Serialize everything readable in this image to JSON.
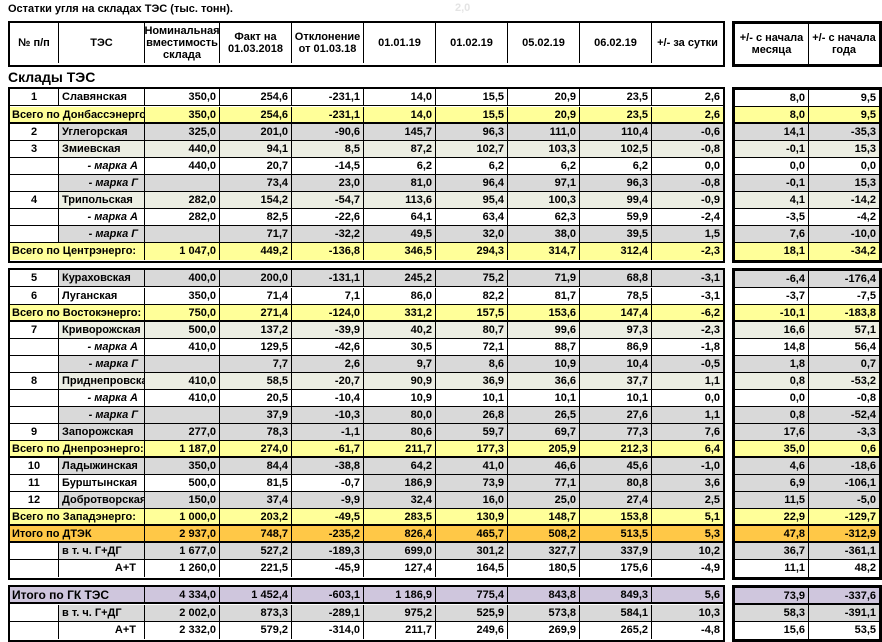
{
  "title": "Остатки угля на складах ТЭС (тыс. тонн).",
  "stray_note": "2,0",
  "section_title": "Склады ТЭС",
  "colors": {
    "yellow_total": "#ffff99",
    "gold_dtek": "#ffc847",
    "lavender_gk": "#cfc6dd",
    "gray_row": "#d9d9d9",
    "tan_row": "#eceee3",
    "border": "#000000"
  },
  "table": {
    "columns": [
      "№ п/п",
      "ТЭС",
      "Номинальная вместимость склада",
      "Факт на 01.03.2018",
      "Отклонение от 01.03.18",
      "01.01.19",
      "01.02.19",
      "05.02.19",
      "06.02.19",
      "+/- за сутки",
      "+/- с начала месяца",
      "+/- с начала года"
    ],
    "sections": [
      {
        "rows": [
          {
            "num": "1",
            "name": "Славянская",
            "style": "white",
            "values": [
              "350,0",
              "254,6",
              "-231,1",
              "14,0",
              "15,5",
              "20,9",
              "23,5",
              "2,6",
              "8,0",
              "9,5"
            ]
          },
          {
            "num": "",
            "name": "Всего по Донбассэнерго:",
            "style": "total",
            "values": [
              "350,0",
              "254,6",
              "-231,1",
              "14,0",
              "15,5",
              "20,9",
              "23,5",
              "2,6",
              "8,0",
              "9,5"
            ]
          },
          {
            "num": "2",
            "name": "Углегорская",
            "style": "gray",
            "values": [
              "325,0",
              "201,0",
              "-90,6",
              "145,7",
              "96,3",
              "111,0",
              "110,4",
              "-0,6",
              "14,1",
              "-35,3"
            ]
          },
          {
            "num": "3",
            "name": "Змиевская",
            "style": "tan",
            "values": [
              "440,0",
              "94,1",
              "8,5",
              "87,2",
              "102,7",
              "103,3",
              "102,5",
              "-0,8",
              "-0,1",
              "15,3"
            ]
          },
          {
            "num": "",
            "name": "- марка А",
            "style": "markaA",
            "values": [
              "440,0",
              "20,7",
              "-14,5",
              "6,2",
              "6,2",
              "6,2",
              "6,2",
              "0,0",
              "0,0",
              "0,0"
            ]
          },
          {
            "num": "",
            "name": "- марка Г",
            "style": "markaG",
            "values": [
              "",
              "73,4",
              "23,0",
              "81,0",
              "96,4",
              "97,1",
              "96,3",
              "-0,8",
              "-0,1",
              "15,3"
            ]
          },
          {
            "num": "4",
            "name": "Трипольская",
            "style": "tan",
            "values": [
              "282,0",
              "154,2",
              "-54,7",
              "113,6",
              "95,4",
              "100,3",
              "99,4",
              "-0,9",
              "4,1",
              "-14,2"
            ]
          },
          {
            "num": "",
            "name": "- марка А",
            "style": "markaA",
            "values": [
              "282,0",
              "82,5",
              "-22,6",
              "64,1",
              "63,4",
              "62,3",
              "59,9",
              "-2,4",
              "-3,5",
              "-4,2"
            ]
          },
          {
            "num": "",
            "name": "- марка Г",
            "style": "markaG",
            "values": [
              "",
              "71,7",
              "-32,2",
              "49,5",
              "32,0",
              "38,0",
              "39,5",
              "1,5",
              "7,6",
              "-10,0"
            ]
          },
          {
            "num": "",
            "name": "Всего по Центрэнерго:",
            "style": "total",
            "values": [
              "1 047,0",
              "449,2",
              "-136,8",
              "346,5",
              "294,3",
              "314,7",
              "312,4",
              "-2,3",
              "18,1",
              "-34,2"
            ]
          }
        ]
      },
      {
        "rows": [
          {
            "num": "5",
            "name": "Кураховская",
            "style": "gray",
            "values": [
              "400,0",
              "200,0",
              "-131,1",
              "245,2",
              "75,2",
              "71,9",
              "68,8",
              "-3,1",
              "-6,4",
              "-176,4"
            ]
          },
          {
            "num": "6",
            "name": "Луганская",
            "style": "white",
            "values": [
              "350,0",
              "71,4",
              "7,1",
              "86,0",
              "82,2",
              "81,7",
              "78,5",
              "-3,1",
              "-3,7",
              "-7,5"
            ]
          },
          {
            "num": "",
            "name": "Всего по Востокэнерго:",
            "style": "total",
            "values": [
              "750,0",
              "271,4",
              "-124,0",
              "331,2",
              "157,5",
              "153,6",
              "147,4",
              "-6,2",
              "-10,1",
              "-183,8"
            ]
          },
          {
            "num": "7",
            "name": "Криворожская",
            "style": "tan",
            "values": [
              "500,0",
              "137,2",
              "-39,9",
              "40,2",
              "80,7",
              "99,6",
              "97,3",
              "-2,3",
              "16,6",
              "57,1"
            ]
          },
          {
            "num": "",
            "name": "- марка А",
            "style": "markaA",
            "values": [
              "410,0",
              "129,5",
              "-42,6",
              "30,5",
              "72,1",
              "88,7",
              "86,9",
              "-1,8",
              "14,8",
              "56,4"
            ]
          },
          {
            "num": "",
            "name": "- марка Г",
            "style": "markaG",
            "values": [
              "",
              "7,7",
              "2,6",
              "9,7",
              "8,6",
              "10,9",
              "10,4",
              "-0,5",
              "1,8",
              "0,7"
            ]
          },
          {
            "num": "8",
            "name": "Приднепровская",
            "style": "tan",
            "values": [
              "410,0",
              "58,5",
              "-20,7",
              "90,9",
              "36,9",
              "36,6",
              "37,7",
              "1,1",
              "0,8",
              "-53,2"
            ]
          },
          {
            "num": "",
            "name": "- марка А",
            "style": "markaA",
            "values": [
              "410,0",
              "20,5",
              "-10,4",
              "10,9",
              "10,1",
              "10,1",
              "10,1",
              "0,0",
              "0,0",
              "-0,8"
            ]
          },
          {
            "num": "",
            "name": "- марка Г",
            "style": "markaG",
            "values": [
              "",
              "37,9",
              "-10,3",
              "80,0",
              "26,8",
              "26,5",
              "27,6",
              "1,1",
              "0,8",
              "-52,4"
            ]
          },
          {
            "num": "9",
            "name": "Запорожская",
            "style": "gray",
            "values": [
              "277,0",
              "78,3",
              "-1,1",
              "80,6",
              "59,7",
              "69,7",
              "77,3",
              "7,6",
              "17,6",
              "-3,3"
            ]
          },
          {
            "num": "",
            "name": "Всего по Днепроэнерго:",
            "style": "total",
            "values": [
              "1 187,0",
              "274,0",
              "-61,7",
              "211,7",
              "177,3",
              "205,9",
              "212,3",
              "6,4",
              "35,0",
              "0,6"
            ]
          },
          {
            "num": "10",
            "name": "Ладыжинская",
            "style": "gray",
            "values": [
              "350,0",
              "84,4",
              "-38,8",
              "64,2",
              "41,0",
              "46,6",
              "45,6",
              "-1,0",
              "4,6",
              "-18,6"
            ]
          },
          {
            "num": "11",
            "name": "Бурштынская",
            "style": "mixed",
            "values": [
              "500,0",
              "81,5",
              "-0,7",
              "186,9",
              "73,9",
              "77,1",
              "80,8",
              "3,6",
              "6,9",
              "-106,1"
            ]
          },
          {
            "num": "12",
            "name": "Добротворская",
            "style": "gray",
            "values": [
              "150,0",
              "37,4",
              "-9,9",
              "32,4",
              "16,0",
              "25,0",
              "27,4",
              "2,5",
              "11,5",
              "-5,0"
            ]
          },
          {
            "num": "",
            "name": "Всего по Западэнерго:",
            "style": "total",
            "values": [
              "1 000,0",
              "203,2",
              "-49,5",
              "283,5",
              "130,9",
              "148,7",
              "153,8",
              "5,1",
              "22,9",
              "-129,7"
            ]
          },
          {
            "num": "",
            "name": "Итого по ДТЭК",
            "style": "dtek",
            "values": [
              "2 937,0",
              "748,7",
              "-235,2",
              "826,4",
              "465,7",
              "508,2",
              "513,5",
              "5,3",
              "47,8",
              "-312,9"
            ]
          },
          {
            "num": "",
            "name": "в т. ч. Г+ДГ",
            "style": "subg",
            "values": [
              "1 677,0",
              "527,2",
              "-189,3",
              "699,0",
              "301,2",
              "327,7",
              "337,9",
              "10,2",
              "36,7",
              "-361,1"
            ]
          },
          {
            "num": "",
            "name": "А+Т",
            "style": "suba",
            "values": [
              "1 260,0",
              "221,5",
              "-45,9",
              "127,4",
              "164,5",
              "180,5",
              "175,6",
              "-4,9",
              "11,1",
              "48,2"
            ]
          }
        ]
      },
      {
        "rows": [
          {
            "num": "",
            "name": "Итого по ГК ТЭС",
            "style": "gk",
            "values": [
              "4 334,0",
              "1 452,4",
              "-603,1",
              "1 186,9",
              "775,4",
              "843,8",
              "849,3",
              "5,6",
              "73,9",
              "-337,6"
            ]
          },
          {
            "num": "",
            "name": "в т. ч. Г+ДГ",
            "style": "subg",
            "values": [
              "2 002,0",
              "873,3",
              "-289,1",
              "975,2",
              "525,9",
              "573,8",
              "584,1",
              "10,3",
              "58,3",
              "-391,1"
            ]
          },
          {
            "num": "",
            "name": "А+Т",
            "style": "suba",
            "values": [
              "2 332,0",
              "579,2",
              "-314,0",
              "211,7",
              "249,6",
              "269,9",
              "265,2",
              "-4,8",
              "15,6",
              "53,5"
            ]
          }
        ]
      }
    ]
  }
}
